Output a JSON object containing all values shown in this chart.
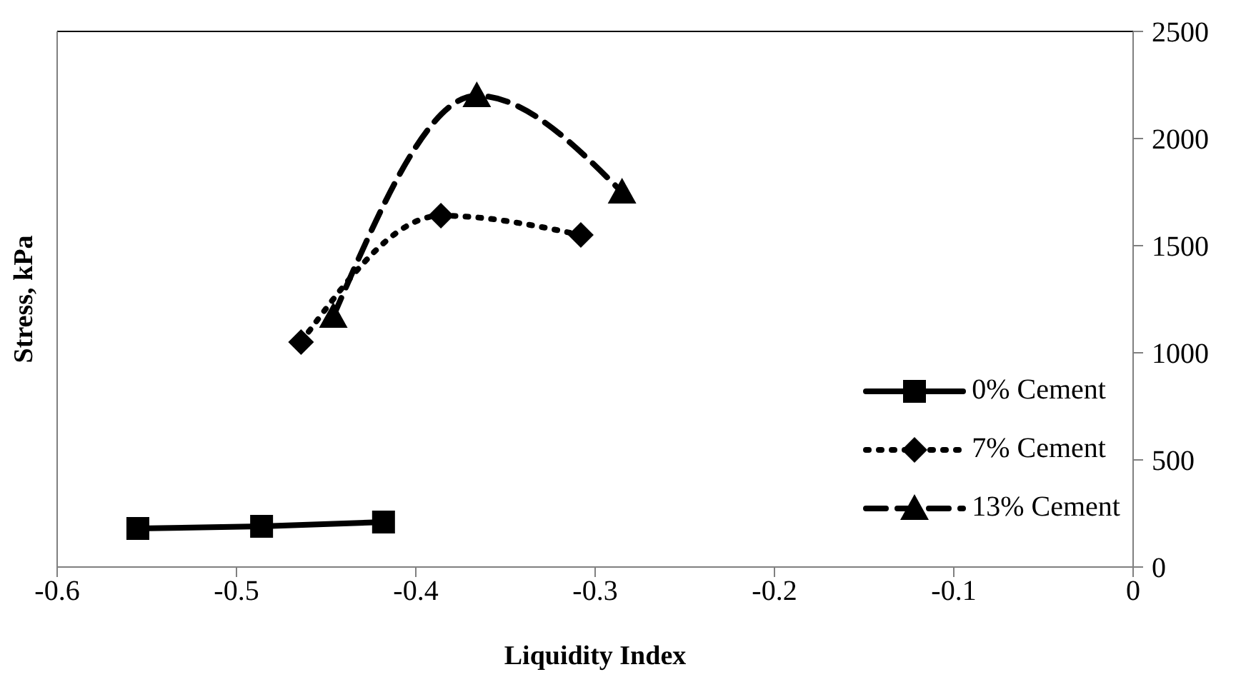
{
  "chart_data": {
    "type": "line",
    "xlabel": "Liquidity Index",
    "ylabel": "Stress, kPa",
    "xlim": [
      -0.6,
      0
    ],
    "xticks": [
      -0.6,
      -0.5,
      -0.4,
      -0.3,
      -0.2,
      -0.1,
      0
    ],
    "ylim": [
      0,
      2500
    ],
    "yticks": [
      0,
      500,
      1000,
      1500,
      2000,
      2500
    ],
    "legend": "bottom right",
    "series": [
      {
        "name": "0% Cement",
        "color": "#000000",
        "marker": "square",
        "line_style": "solid",
        "x": [
          -0.555,
          -0.486,
          -0.418
        ],
        "values": [
          180,
          190,
          210
        ]
      },
      {
        "name": "7% Cement",
        "color": "#000000",
        "marker": "diamond",
        "line_style": "dotted",
        "x": [
          -0.464,
          -0.386,
          -0.308
        ],
        "values": [
          1050,
          1640,
          1550
        ]
      },
      {
        "name": "13% Cement",
        "color": "#000000",
        "marker": "triangle",
        "line_style": "dashed",
        "x": [
          -0.446,
          -0.366,
          -0.285
        ],
        "values": [
          1170,
          2200,
          1750
        ]
      }
    ]
  }
}
